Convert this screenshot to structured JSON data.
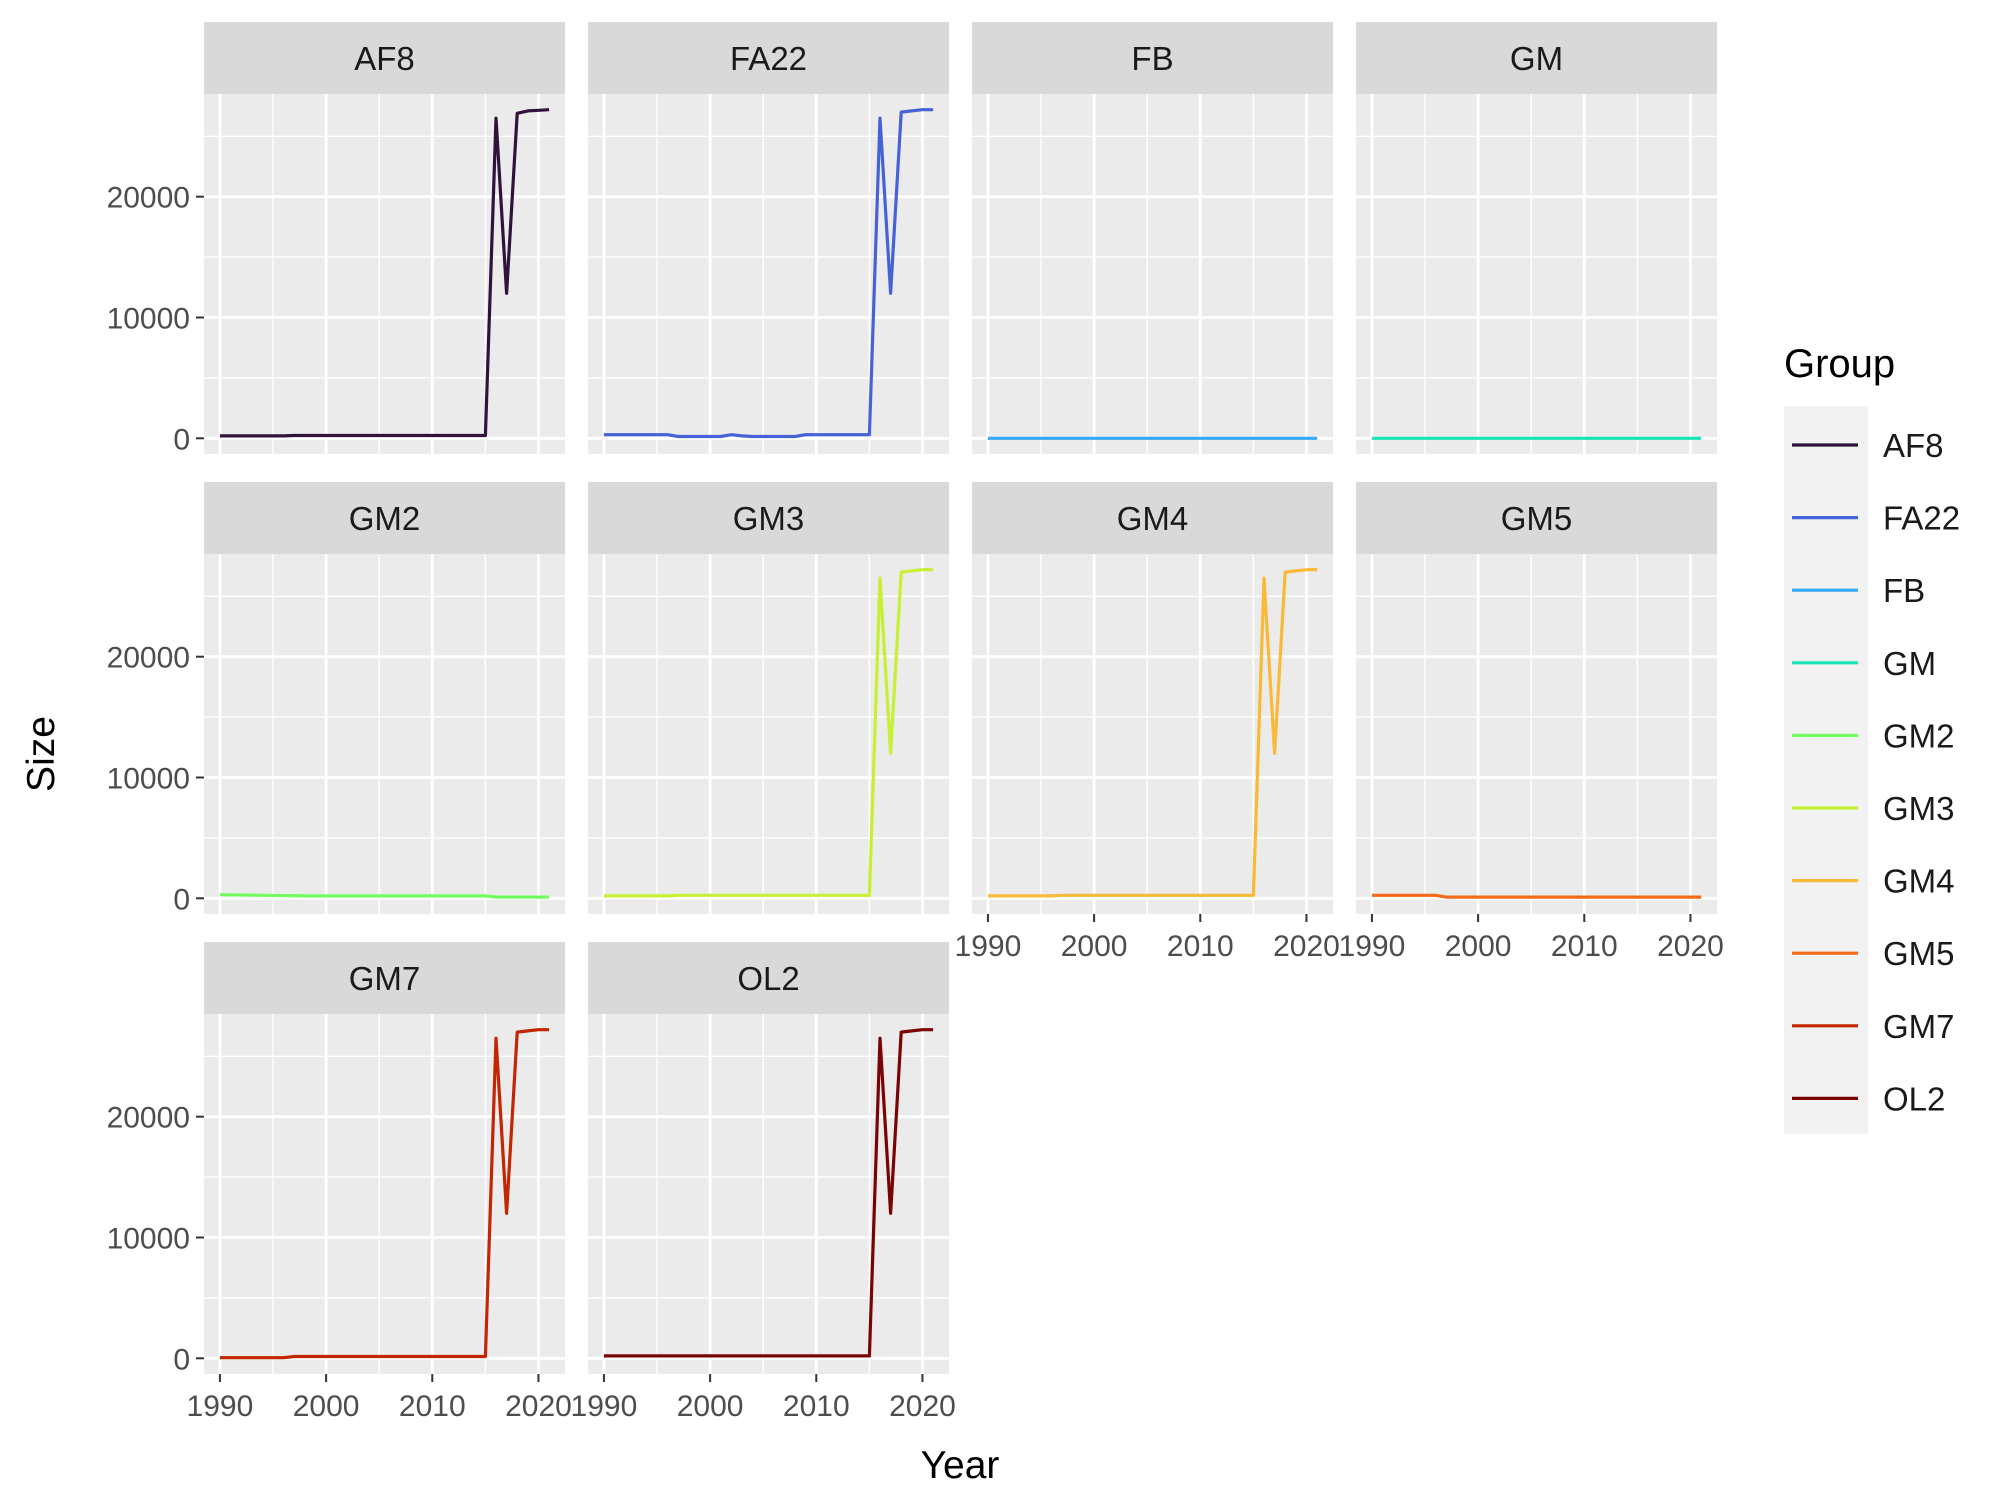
{
  "chart_data": {
    "type": "line",
    "layout": "facet_wrap",
    "xlabel": "Year",
    "ylabel": "Size",
    "xlim": [
      1988.5,
      2022.5
    ],
    "ylim": [
      -1300,
      28500
    ],
    "x_ticks": [
      1990,
      2000,
      2010,
      2020
    ],
    "y_ticks": [
      0,
      10000,
      20000
    ],
    "grid": true,
    "legend": {
      "title": "Group",
      "position": "right"
    },
    "series": [
      {
        "name": "AF8",
        "color": "#30123B",
        "x": [
          1990,
          1996,
          1997,
          2015,
          2016,
          2017,
          2018,
          2019,
          2020,
          2021
        ],
        "y": [
          200,
          200,
          230,
          230,
          26500,
          12000,
          26900,
          27100,
          27150,
          27200
        ]
      },
      {
        "name": "FA22",
        "color": "#4662D7",
        "x": [
          1990,
          1996,
          1997,
          2001,
          2002,
          2003,
          2004,
          2008,
          2009,
          2015,
          2016,
          2017,
          2018,
          2019,
          2020,
          2021
        ],
        "y": [
          300,
          300,
          150,
          150,
          300,
          200,
          150,
          150,
          300,
          300,
          26500,
          12000,
          27000,
          27100,
          27200,
          27200
        ]
      },
      {
        "name": "FB",
        "color": "#36AAF9",
        "x": [
          1990,
          2021
        ],
        "y": [
          0,
          0
        ]
      },
      {
        "name": "GM",
        "color": "#1AE4B6",
        "x": [
          1990,
          2021
        ],
        "y": [
          0,
          0
        ]
      },
      {
        "name": "GM2",
        "color": "#72FE5E",
        "x": [
          1990,
          1998,
          2015,
          2016,
          2021
        ],
        "y": [
          300,
          200,
          200,
          100,
          100
        ]
      },
      {
        "name": "GM3",
        "color": "#C7EF34",
        "x": [
          1990,
          1996,
          1997,
          2015,
          2016,
          2017,
          2018,
          2019,
          2020,
          2021
        ],
        "y": [
          200,
          200,
          250,
          250,
          26500,
          12000,
          27000,
          27100,
          27200,
          27200
        ]
      },
      {
        "name": "GM4",
        "color": "#FBB938",
        "x": [
          1990,
          1996,
          1997,
          2015,
          2016,
          2017,
          2018,
          2019,
          2020,
          2021
        ],
        "y": [
          200,
          200,
          250,
          250,
          26500,
          12000,
          27000,
          27100,
          27200,
          27200
        ]
      },
      {
        "name": "GM5",
        "color": "#F56918",
        "x": [
          1990,
          1996,
          1997,
          2021
        ],
        "y": [
          250,
          250,
          100,
          100
        ]
      },
      {
        "name": "GM7",
        "color": "#C42503",
        "x": [
          1990,
          1996,
          1997,
          2015,
          2016,
          2017,
          2018,
          2019,
          2020,
          2021
        ],
        "y": [
          50,
          50,
          150,
          150,
          26500,
          12000,
          27000,
          27100,
          27200,
          27200
        ]
      },
      {
        "name": "OL2",
        "color": "#7A0403",
        "x": [
          1990,
          2015,
          2016,
          2017,
          2018,
          2019,
          2020,
          2021
        ],
        "y": [
          200,
          200,
          26500,
          12000,
          27000,
          27100,
          27200,
          27200
        ]
      }
    ]
  }
}
